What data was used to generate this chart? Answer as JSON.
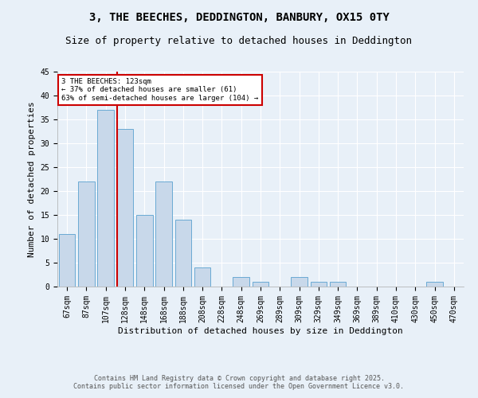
{
  "title_line1": "3, THE BEECHES, DEDDINGTON, BANBURY, OX15 0TY",
  "title_line2": "Size of property relative to detached houses in Deddington",
  "xlabel": "Distribution of detached houses by size in Deddington",
  "ylabel": "Number of detached properties",
  "bar_labels": [
    "67sqm",
    "87sqm",
    "107sqm",
    "128sqm",
    "148sqm",
    "168sqm",
    "188sqm",
    "208sqm",
    "228sqm",
    "248sqm",
    "269sqm",
    "289sqm",
    "309sqm",
    "329sqm",
    "349sqm",
    "369sqm",
    "389sqm",
    "410sqm",
    "430sqm",
    "450sqm",
    "470sqm"
  ],
  "bar_values": [
    11,
    22,
    37,
    33,
    15,
    22,
    14,
    4,
    0,
    2,
    1,
    0,
    2,
    1,
    1,
    0,
    0,
    0,
    0,
    1,
    0
  ],
  "bar_color": "#c8d8ea",
  "bar_edge_color": "#6aaad4",
  "red_line_index": 3,
  "annotation_text": "3 THE BEECHES: 123sqm\n← 37% of detached houses are smaller (61)\n63% of semi-detached houses are larger (104) →",
  "annotation_box_color": "#ffffff",
  "annotation_border_color": "#cc0000",
  "red_line_color": "#cc0000",
  "ylim": [
    0,
    45
  ],
  "yticks": [
    0,
    5,
    10,
    15,
    20,
    25,
    30,
    35,
    40,
    45
  ],
  "bg_color": "#e8f0f8",
  "plot_bg_color": "#e8f0f8",
  "footer_text": "Contains HM Land Registry data © Crown copyright and database right 2025.\nContains public sector information licensed under the Open Government Licence v3.0.",
  "title_fontsize": 10,
  "subtitle_fontsize": 9,
  "tick_fontsize": 7,
  "ylabel_fontsize": 8,
  "xlabel_fontsize": 8,
  "footer_fontsize": 6
}
